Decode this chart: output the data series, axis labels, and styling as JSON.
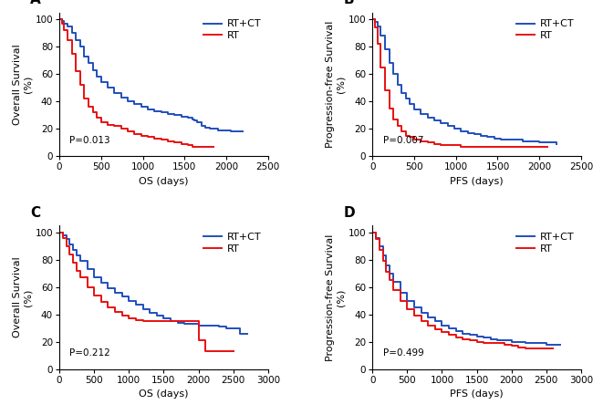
{
  "panels": [
    {
      "label": "A",
      "ylabel": "Overall Survival\n(%)",
      "xlabel": "OS (days)",
      "pvalue": "P=0.013",
      "xlim": [
        0,
        2500
      ],
      "xticks": [
        0,
        500,
        1000,
        1500,
        2000,
        2500
      ],
      "ylim": [
        0,
        105
      ],
      "yticks": [
        0,
        20,
        40,
        60,
        80,
        100
      ],
      "blue_x": [
        0,
        30,
        60,
        100,
        150,
        200,
        250,
        300,
        350,
        400,
        450,
        500,
        580,
        660,
        740,
        820,
        900,
        980,
        1060,
        1140,
        1220,
        1300,
        1380,
        1460,
        1540,
        1600,
        1620,
        1650,
        1700,
        1750,
        1800,
        1850,
        1900,
        1950,
        2000,
        2050,
        2100,
        2150,
        2200
      ],
      "blue_y": [
        100,
        99,
        97,
        95,
        90,
        85,
        80,
        73,
        68,
        63,
        58,
        54,
        50,
        46,
        43,
        40,
        38,
        36,
        34,
        33,
        32,
        31,
        30,
        29,
        28,
        27,
        26,
        25,
        22,
        21,
        20,
        20,
        19,
        19,
        19,
        18,
        18,
        18,
        18
      ],
      "red_x": [
        0,
        30,
        60,
        100,
        150,
        200,
        250,
        300,
        350,
        400,
        450,
        500,
        580,
        660,
        740,
        820,
        900,
        980,
        1060,
        1140,
        1220,
        1300,
        1380,
        1460,
        1540,
        1600,
        1620,
        1650,
        1700,
        1750,
        1800,
        1850
      ],
      "red_y": [
        100,
        97,
        92,
        85,
        75,
        62,
        52,
        42,
        36,
        32,
        28,
        25,
        23,
        22,
        20,
        18,
        16,
        15,
        14,
        13,
        12,
        11,
        10,
        9,
        8,
        7,
        7,
        7,
        7,
        7,
        7,
        7
      ]
    },
    {
      "label": "B",
      "ylabel": "Progression-free Survival\n(%)",
      "xlabel": "PFS (days)",
      "pvalue": "P=0.007",
      "xlim": [
        0,
        2500
      ],
      "xticks": [
        0,
        500,
        1000,
        1500,
        2000,
        2500
      ],
      "ylim": [
        0,
        105
      ],
      "yticks": [
        0,
        20,
        40,
        60,
        80,
        100
      ],
      "blue_x": [
        0,
        30,
        60,
        100,
        150,
        200,
        250,
        300,
        350,
        400,
        450,
        500,
        580,
        660,
        740,
        820,
        900,
        980,
        1060,
        1140,
        1220,
        1300,
        1380,
        1460,
        1540,
        1600,
        1650,
        1700,
        1800,
        1900,
        2000,
        2100,
        2200
      ],
      "blue_y": [
        100,
        98,
        95,
        88,
        78,
        68,
        60,
        52,
        46,
        42,
        38,
        34,
        31,
        28,
        26,
        24,
        22,
        20,
        18,
        17,
        16,
        15,
        14,
        13,
        12,
        12,
        12,
        12,
        11,
        11,
        10,
        10,
        9
      ],
      "red_x": [
        0,
        30,
        60,
        100,
        150,
        200,
        250,
        300,
        350,
        400,
        450,
        500,
        580,
        660,
        740,
        820,
        900,
        980,
        1060,
        1140,
        1220,
        1300,
        1380,
        1500,
        1600,
        1700,
        1800,
        1900,
        2000,
        2100
      ],
      "red_y": [
        100,
        94,
        82,
        65,
        48,
        35,
        27,
        22,
        18,
        15,
        14,
        12,
        11,
        10,
        9,
        8,
        8,
        8,
        7,
        7,
        7,
        7,
        7,
        7,
        7,
        7,
        7,
        7,
        7,
        7
      ]
    },
    {
      "label": "C",
      "ylabel": "Overall Survival\n(%)",
      "xlabel": "OS (days)",
      "pvalue": "P=0.212",
      "xlim": [
        0,
        3000
      ],
      "xticks": [
        0,
        500,
        1000,
        1500,
        2000,
        2500,
        3000
      ],
      "ylim": [
        0,
        105
      ],
      "yticks": [
        0,
        20,
        40,
        60,
        80,
        100
      ],
      "blue_x": [
        0,
        50,
        100,
        150,
        200,
        250,
        300,
        400,
        500,
        600,
        700,
        800,
        900,
        1000,
        1100,
        1200,
        1300,
        1400,
        1500,
        1600,
        1700,
        1800,
        1900,
        2000,
        2100,
        2200,
        2300,
        2400,
        2500,
        2600,
        2700
      ],
      "blue_y": [
        100,
        98,
        95,
        91,
        87,
        83,
        79,
        73,
        67,
        63,
        59,
        56,
        53,
        50,
        47,
        44,
        41,
        39,
        37,
        35,
        34,
        33,
        33,
        32,
        32,
        32,
        31,
        30,
        30,
        26,
        26
      ],
      "red_x": [
        0,
        50,
        100,
        150,
        200,
        250,
        300,
        400,
        500,
        600,
        700,
        800,
        900,
        1000,
        1100,
        1200,
        1300,
        1400,
        1500,
        1600,
        1700,
        1800,
        1900,
        2000,
        2100,
        2200,
        2300,
        2400,
        2500
      ],
      "red_y": [
        100,
        96,
        90,
        84,
        78,
        72,
        67,
        60,
        54,
        49,
        45,
        42,
        39,
        37,
        36,
        35,
        35,
        35,
        35,
        35,
        35,
        35,
        35,
        21,
        13,
        13,
        13,
        13,
        13
      ]
    },
    {
      "label": "D",
      "ylabel": "Progression-free Survival\n(%)",
      "xlabel": "PFS (days)",
      "pvalue": "P=0.499",
      "xlim": [
        0,
        3000
      ],
      "xticks": [
        0,
        500,
        1000,
        1500,
        2000,
        2500,
        3000
      ],
      "ylim": [
        0,
        105
      ],
      "yticks": [
        0,
        20,
        40,
        60,
        80,
        100
      ],
      "blue_x": [
        0,
        50,
        100,
        150,
        200,
        250,
        300,
        400,
        500,
        600,
        700,
        800,
        900,
        1000,
        1100,
        1200,
        1300,
        1400,
        1500,
        1600,
        1700,
        1800,
        1900,
        2000,
        2100,
        2200,
        2300,
        2400,
        2500,
        2600,
        2700
      ],
      "blue_y": [
        100,
        96,
        90,
        83,
        76,
        70,
        64,
        56,
        50,
        45,
        41,
        38,
        35,
        32,
        30,
        28,
        26,
        25,
        24,
        23,
        22,
        21,
        21,
        20,
        20,
        19,
        19,
        19,
        18,
        18,
        18
      ],
      "red_x": [
        0,
        50,
        100,
        150,
        200,
        250,
        300,
        400,
        500,
        600,
        700,
        800,
        900,
        1000,
        1100,
        1200,
        1300,
        1400,
        1500,
        1600,
        1700,
        1800,
        1900,
        2000,
        2100,
        2200,
        2300,
        2400,
        2500,
        2600
      ],
      "red_y": [
        100,
        95,
        87,
        79,
        71,
        65,
        58,
        50,
        44,
        39,
        35,
        32,
        29,
        27,
        25,
        23,
        22,
        21,
        20,
        19,
        19,
        19,
        18,
        17,
        16,
        15,
        15,
        15,
        15,
        15
      ]
    }
  ],
  "blue_color": "#1f4fbd",
  "red_color": "#e81010",
  "legend_labels": [
    "RT+CT",
    "RT"
  ],
  "label_fontsize": 8,
  "tick_fontsize": 7.5,
  "pvalue_fontsize": 7.5,
  "panel_label_fontsize": 11,
  "line_width": 1.4
}
